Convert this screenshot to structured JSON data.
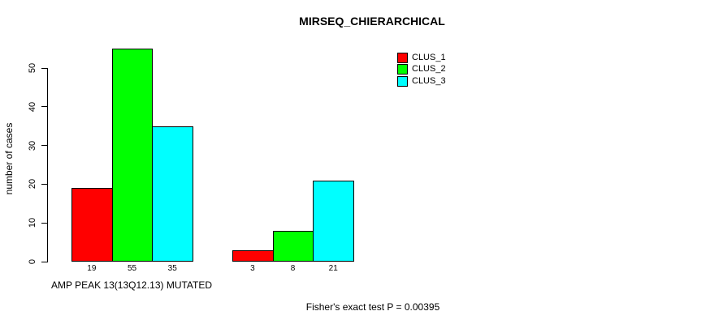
{
  "title": "MIRSEQ_CHIERARCHICAL",
  "footer": "Fisher's exact test P = 0.00395",
  "colors": {
    "background": "#ffffff",
    "axis": "#000000"
  },
  "legend": {
    "position": "top-right",
    "items": [
      {
        "label": "CLUS_1",
        "color": "#ff0000"
      },
      {
        "label": "CLUS_2",
        "color": "#00ff00"
      },
      {
        "label": "CLUS_3",
        "color": "#00ffff"
      }
    ]
  },
  "chart_data": {
    "type": "bar",
    "title": "MIRSEQ_CHIERARCHICAL",
    "categories": [
      "AMP PEAK 13(13Q12.13) MUTATED",
      ""
    ],
    "series": [
      {
        "name": "CLUS_1",
        "color": "#ff0000",
        "values": [
          19,
          3
        ]
      },
      {
        "name": "CLUS_2",
        "color": "#00ff00",
        "values": [
          55,
          8
        ]
      },
      {
        "name": "CLUS_3",
        "color": "#00ffff",
        "values": [
          35,
          21
        ]
      }
    ],
    "xlabel": "AMP PEAK 13(13Q12.13) MUTATED",
    "ylabel": "number of cases",
    "yticks": [
      0,
      10,
      20,
      30,
      40,
      50
    ],
    "ylim": [
      0,
      55
    ],
    "grid": false,
    "legend_position": "top-right",
    "bar_value_labels": true,
    "annotation": "Fisher's exact test P = 0.00395"
  }
}
